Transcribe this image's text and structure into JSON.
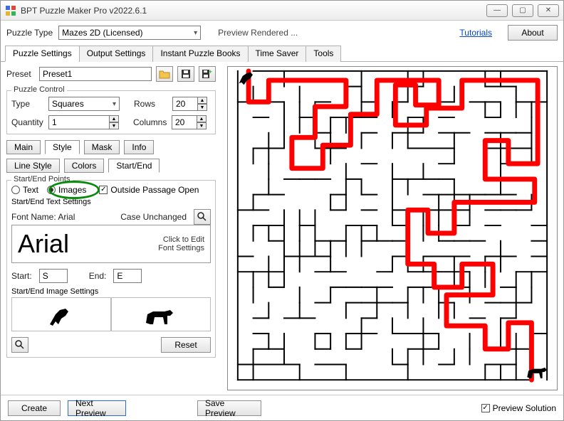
{
  "title": "BPT Puzzle Maker Pro v2022.6.1",
  "puzzleTypeLabel": "Puzzle Type",
  "puzzleTypeValue": "Mazes 2D (Licensed)",
  "previewStatus": "Preview Rendered ...",
  "tutorialsLink": "Tutorials",
  "aboutBtn": "About",
  "mainTabs": [
    "Puzzle Settings",
    "Output Settings",
    "Instant Puzzle Books",
    "Time Saver",
    "Tools"
  ],
  "activeMainTab": 0,
  "presetLabel": "Preset",
  "presetValue": "Preset1",
  "puzzleControlTitle": "Puzzle Control",
  "typeLabel": "Type",
  "typeValue": "Squares",
  "rowsLabel": "Rows",
  "rowsValue": "20",
  "quantityLabel": "Quantity",
  "quantityValue": "1",
  "columnsLabel": "Columns",
  "columnsValue": "20",
  "styleTabs": [
    "Main",
    "Style",
    "Mask",
    "Info"
  ],
  "activeStyleTab": 1,
  "styleSubTabs": [
    "Line Style",
    "Colors",
    "Start/End"
  ],
  "activeStyleSubTab": 2,
  "startEndPointsTitle": "Start/End Points",
  "textRadioLabel": "Text",
  "imagesRadioLabel": "Images",
  "imagesSelected": true,
  "outsidePassageLabel": "Outside Passage Open",
  "outsidePassageChecked": true,
  "startEndTextTitle": "Start/End Text Settings",
  "fontNameLabel": "Font Name: Arial",
  "caseLabel": "Case Unchanged",
  "fontPreview": "Arial",
  "fontEditLine1": "Click to Edit",
  "fontEditLine2": "Font Settings",
  "startLabel": "Start:",
  "startValue": "S",
  "endLabel": "End:",
  "endValue": "E",
  "startEndImageTitle": "Start/End Image Settings",
  "resetBtn": "Reset",
  "createBtn": "Create",
  "nextPreviewBtn": "Next Preview",
  "savePreviewBtn": "Save Preview",
  "previewSolutionLabel": "Preview Solution",
  "previewSolutionChecked": true,
  "colors": {
    "highlight": "#0a8a0a",
    "solutionPath": "#ff0000",
    "mazeWall": "#000000",
    "link": "#0645cc",
    "focusBorder": "#2a6bd4"
  },
  "maze": {
    "gridSize": 20,
    "cellPx": 22,
    "startImage": "dog-jumping",
    "endImage": "dog-standing"
  }
}
